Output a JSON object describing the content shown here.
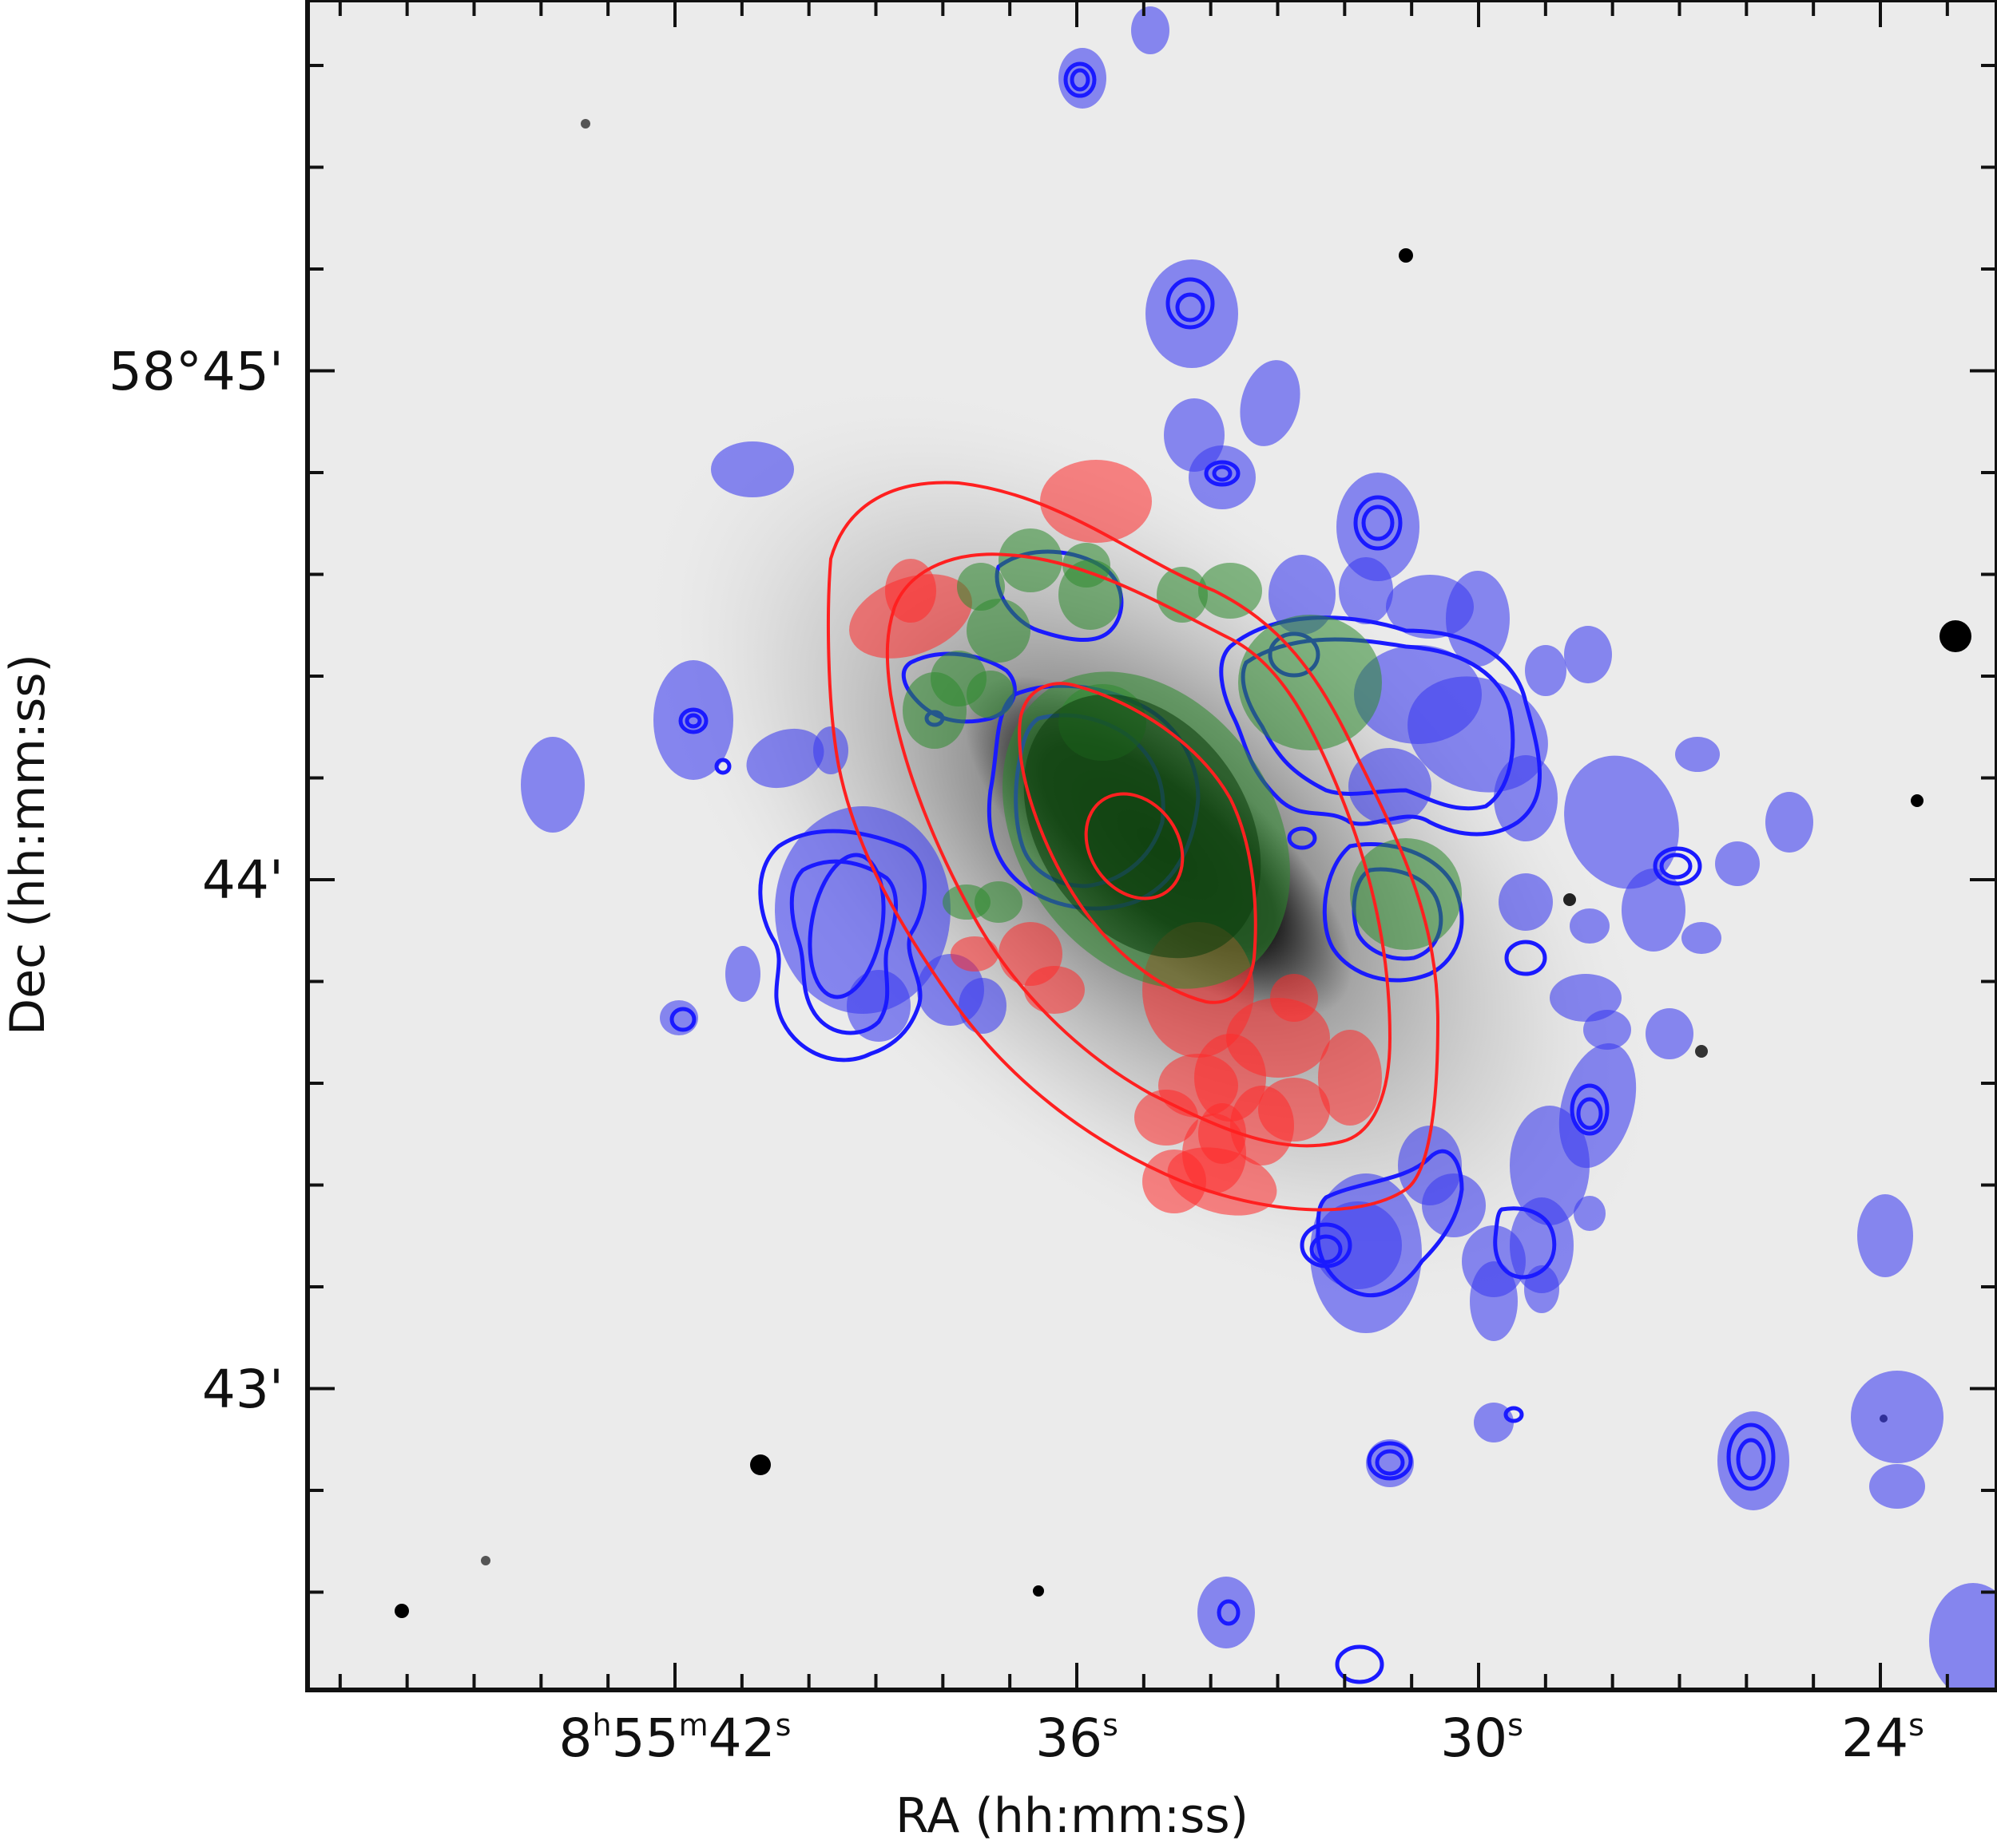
{
  "figure": {
    "xlabel": "RA (hh:mm:ss)",
    "ylabel": "Dec (hh:mm:ss)",
    "colors": {
      "blue": "#3b3bf0",
      "green": "#2e8b2e",
      "red": "#ff2a2a",
      "frame": "#111111",
      "sky": "#ebebeb"
    }
  },
  "x_ticks": [
    {
      "h": "8",
      "m": "55",
      "s": "42"
    },
    {
      "s": "36"
    },
    {
      "s": "30"
    },
    {
      "s": "24"
    }
  ],
  "y_ticks": [
    "58°45'",
    "44'",
    "43'"
  ]
}
